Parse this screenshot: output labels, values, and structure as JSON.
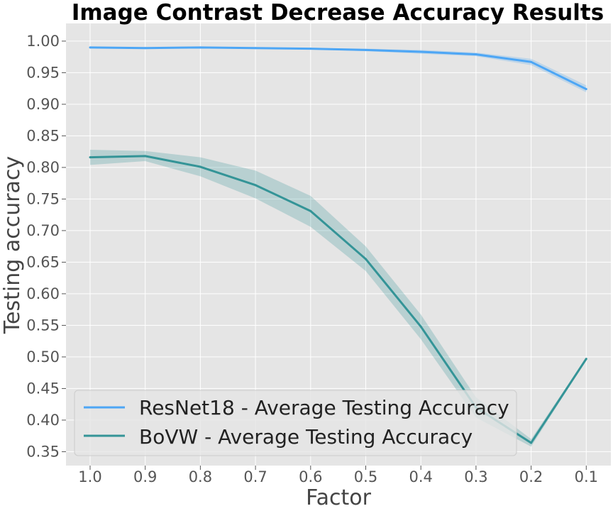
{
  "chart_data": {
    "type": "line",
    "title": "Image Contrast Decrease Accuracy Results",
    "xlabel": "Factor",
    "ylabel": "Testing accuracy",
    "x": [
      "1.0",
      "0.9",
      "0.8",
      "0.7",
      "0.6",
      "0.5",
      "0.4",
      "0.3",
      "0.2",
      "0.1"
    ],
    "yticks": [
      "0.35",
      "0.40",
      "0.45",
      "0.50",
      "0.55",
      "0.60",
      "0.65",
      "0.70",
      "0.75",
      "0.80",
      "0.85",
      "0.90",
      "0.95",
      "1.00"
    ],
    "ylim": [
      0.328,
      1.028
    ],
    "grid": true,
    "legend_position": "lower-left",
    "series": [
      {
        "name": "ResNet18 - Average Testing Accuracy",
        "color": "#4da6f5",
        "values": [
          0.99,
          0.989,
          0.99,
          0.989,
          0.988,
          0.986,
          0.983,
          0.979,
          0.967,
          0.924
        ],
        "lower": [
          0.989,
          0.988,
          0.989,
          0.988,
          0.987,
          0.984,
          0.98,
          0.976,
          0.962,
          0.919
        ],
        "upper": [
          0.991,
          0.99,
          0.991,
          0.99,
          0.989,
          0.988,
          0.986,
          0.982,
          0.972,
          0.93
        ]
      },
      {
        "name": "BoVW - Average Testing Accuracy",
        "color": "#349497",
        "values": [
          0.816,
          0.818,
          0.801,
          0.772,
          0.731,
          0.655,
          0.548,
          0.42,
          0.364,
          0.497
        ],
        "lower": [
          0.804,
          0.81,
          0.786,
          0.751,
          0.706,
          0.636,
          0.528,
          0.404,
          0.358,
          0.495
        ],
        "upper": [
          0.828,
          0.826,
          0.816,
          0.795,
          0.755,
          0.675,
          0.567,
          0.436,
          0.37,
          0.499
        ]
      }
    ]
  }
}
